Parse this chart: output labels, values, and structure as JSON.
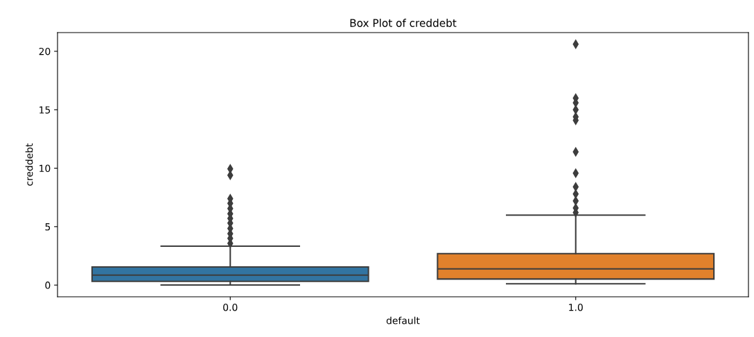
{
  "chart_data": {
    "type": "box",
    "title": "Box Plot of creddebt",
    "xlabel": "default",
    "ylabel": "creddebt",
    "categories": [
      "0.0",
      "1.0"
    ],
    "colors": [
      "#3274a1",
      "#e1812c"
    ],
    "boxes": [
      {
        "low": 0.01,
        "q1": 0.32,
        "median": 0.85,
        "q3": 1.55,
        "high": 3.33,
        "outliers": [
          3.57,
          4.0,
          4.4,
          4.85,
          5.3,
          5.7,
          6.1,
          6.55,
          7.0,
          7.4,
          9.4,
          9.95
        ]
      },
      {
        "low": 0.11,
        "q1": 0.52,
        "median": 1.39,
        "q3": 2.69,
        "high": 5.98,
        "outliers": [
          6.2,
          6.6,
          7.2,
          7.8,
          8.4,
          9.57,
          11.4,
          14.1,
          14.4,
          15.0,
          15.6,
          16.0,
          20.6
        ]
      }
    ],
    "ylim": [
      -1.0,
      21.6
    ],
    "yticks": [
      0,
      5,
      10,
      15,
      20
    ],
    "grid": false,
    "marker": "diamond"
  }
}
